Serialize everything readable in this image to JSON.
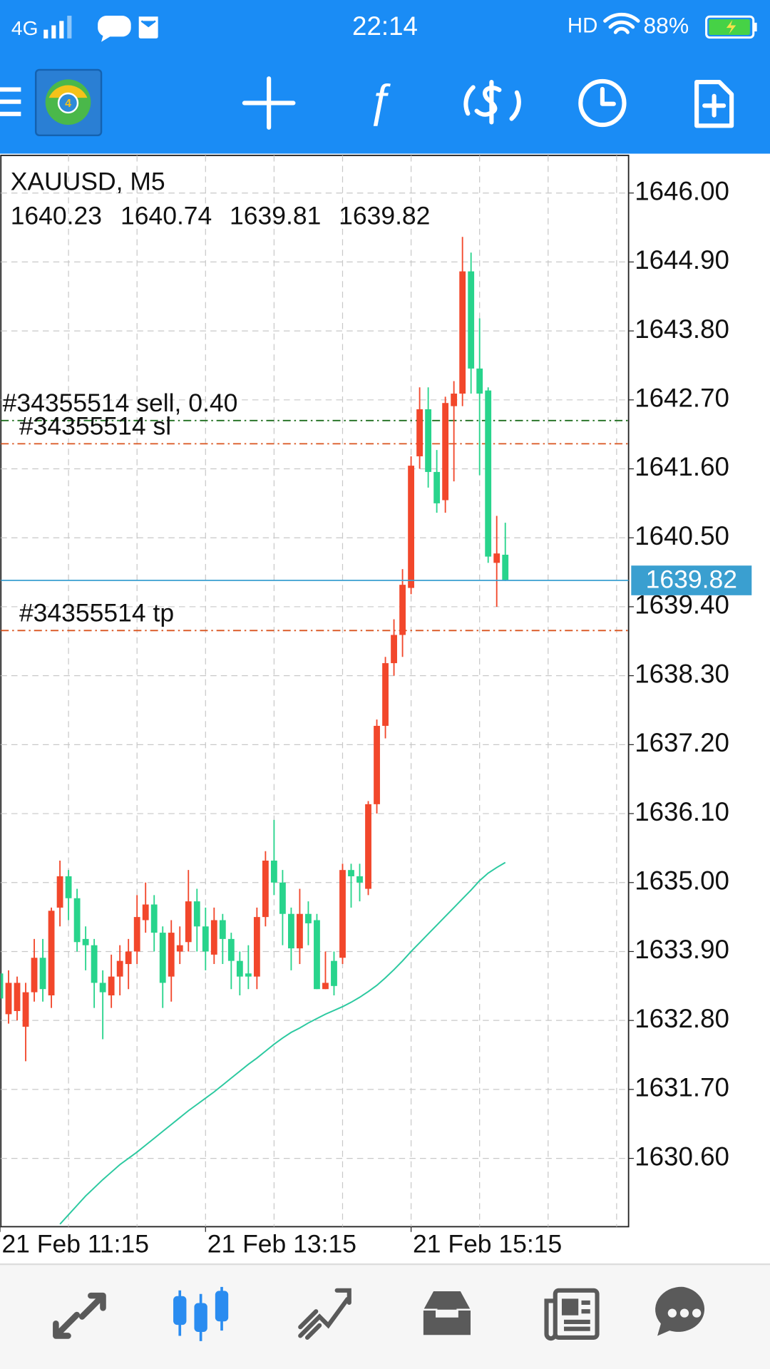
{
  "status_bar": {
    "network": "4G",
    "time": "22:14",
    "hd": "HD",
    "battery": "88%"
  },
  "chart_data": {
    "type": "candlestick",
    "title": "XAUUSD, M5",
    "categories": [
      "21 Feb 11:15",
      null,
      null,
      null,
      null,
      null,
      null,
      null,
      null,
      null,
      null,
      null,
      null,
      null,
      null,
      null,
      null,
      null,
      null,
      null,
      null,
      null,
      null,
      null,
      "21 Feb 13:15",
      null,
      null,
      null,
      null,
      null,
      null,
      null,
      null,
      null,
      null,
      null,
      null,
      null,
      null,
      null,
      null,
      null,
      null,
      null,
      null,
      null,
      null,
      null,
      "21 Feb 15:15",
      null,
      null,
      null,
      null,
      null,
      null,
      null,
      null,
      null,
      null,
      null
    ],
    "open": [
      1633.55,
      1632.9,
      1632.95,
      1632.7,
      1633.25,
      1633.8,
      1633.2,
      1634.6,
      1635.1,
      1634.75,
      1634.1,
      1634.0,
      1633.4,
      1633.2,
      1633.5,
      1633.7,
      1633.9,
      1634.4,
      1634.65,
      1634.2,
      1633.5,
      1633.9,
      1634.05,
      1634.7,
      1634.3,
      1633.85,
      1634.4,
      1634.1,
      1633.75,
      1633.55,
      1633.5,
      1634.45,
      1635.35,
      1635.0,
      1634.5,
      1633.95,
      1634.5,
      1634.4,
      1633.3,
      1633.75,
      1633.8,
      1635.2,
      1635.1,
      1634.9,
      1636.25,
      1637.5,
      1638.5,
      1638.95,
      1639.7,
      1641.8,
      1642.55,
      1641.55,
      1641.1,
      1642.6,
      1642.8,
      1644.75,
      1643.2,
      1642.85,
      1640.1,
      1640.23
    ],
    "high": [
      1633.7,
      1633.6,
      1633.5,
      1633.4,
      1634.1,
      1634.1,
      1634.6,
      1635.35,
      1635.2,
      1634.9,
      1634.3,
      1634.1,
      1633.6,
      1633.85,
      1634.0,
      1634.1,
      1634.8,
      1635.0,
      1634.8,
      1634.3,
      1634.4,
      1634.3,
      1635.2,
      1634.9,
      1634.6,
      1634.6,
      1634.5,
      1634.2,
      1633.9,
      1634.0,
      1634.6,
      1635.5,
      1636.0,
      1635.2,
      1634.6,
      1634.9,
      1634.7,
      1634.5,
      1633.9,
      1633.9,
      1635.3,
      1635.3,
      1635.3,
      1636.3,
      1637.6,
      1638.6,
      1639.2,
      1640.0,
      1641.8,
      1642.9,
      1642.9,
      1641.9,
      1642.75,
      1643.0,
      1645.3,
      1645.05,
      1644.0,
      1642.9,
      1640.85,
      1640.74
    ],
    "low": [
      1632.9,
      1632.75,
      1632.8,
      1632.15,
      1633.1,
      1633.1,
      1633.0,
      1634.3,
      1634.4,
      1633.9,
      1633.6,
      1633.0,
      1632.5,
      1633.0,
      1633.2,
      1633.3,
      1633.7,
      1634.2,
      1633.9,
      1633.0,
      1633.1,
      1633.7,
      1633.9,
      1633.9,
      1633.6,
      1633.7,
      1633.7,
      1633.3,
      1633.2,
      1633.3,
      1633.3,
      1634.3,
      1634.8,
      1634.0,
      1633.6,
      1633.7,
      1634.0,
      1633.3,
      1633.3,
      1633.2,
      1633.7,
      1634.6,
      1634.7,
      1634.8,
      1636.1,
      1637.3,
      1638.3,
      1638.6,
      1639.6,
      1641.6,
      1641.3,
      1640.9,
      1640.9,
      1641.4,
      1642.6,
      1642.8,
      1641.5,
      1640.1,
      1639.4,
      1639.81
    ],
    "close": [
      1633.15,
      1633.4,
      1633.4,
      1633.25,
      1633.8,
      1633.3,
      1634.55,
      1635.1,
      1634.75,
      1634.05,
      1634.0,
      1633.4,
      1633.25,
      1633.5,
      1633.75,
      1633.9,
      1634.45,
      1634.65,
      1634.2,
      1633.4,
      1634.2,
      1634.0,
      1634.7,
      1634.3,
      1633.9,
      1634.4,
      1634.1,
      1633.75,
      1633.5,
      1633.5,
      1634.45,
      1635.35,
      1635.0,
      1634.5,
      1633.95,
      1634.5,
      1634.35,
      1633.3,
      1633.4,
      1633.35,
      1635.2,
      1635.1,
      1635.0,
      1636.25,
      1637.5,
      1638.5,
      1638.95,
      1639.75,
      1641.65,
      1642.55,
      1641.55,
      1641.05,
      1642.65,
      1642.8,
      1644.75,
      1643.2,
      1642.8,
      1640.2,
      1640.25,
      1639.82
    ],
    "up_color": "#f2472b",
    "down_color": "#28d48c",
    "ma": {
      "color": "#2cc9a0",
      "values": [
        null,
        null,
        null,
        null,
        null,
        null,
        null,
        1629.55,
        1629.7,
        1629.85,
        1630.0,
        1630.13,
        1630.26,
        1630.38,
        1630.5,
        1630.6,
        1630.7,
        1630.81,
        1630.92,
        1631.03,
        1631.14,
        1631.25,
        1631.36,
        1631.46,
        1631.56,
        1631.66,
        1631.77,
        1631.88,
        1631.99,
        1632.1,
        1632.2,
        1632.31,
        1632.42,
        1632.52,
        1632.61,
        1632.68,
        1632.76,
        1632.83,
        1632.9,
        1632.96,
        1633.02,
        1633.09,
        1633.17,
        1633.26,
        1633.36,
        1633.48,
        1633.61,
        1633.75,
        1633.9,
        1634.04,
        1634.18,
        1634.32,
        1634.46,
        1634.6,
        1634.74,
        1634.88,
        1635.03,
        1635.15,
        1635.24,
        1635.32
      ]
    },
    "order_lines": [
      {
        "label": "#34355514 sell, 0.40",
        "value": 1642.37,
        "color": "#1f6e1f"
      },
      {
        "label": "#34355514 sl",
        "value": 1642.0,
        "color": "#d9531e"
      },
      {
        "label": "#34355514 tp",
        "value": 1639.02,
        "color": "#d9531e"
      }
    ],
    "bid_color": "#3a9fd0",
    "ylim": [
      1629.51,
      1646.6
    ],
    "yticks": [
      {
        "value": 1646,
        "label": "1646.00"
      },
      {
        "value": 1644.9,
        "label": "1644.90"
      },
      {
        "value": 1643.8,
        "label": "1643.80"
      },
      {
        "value": 1642.7,
        "label": "1642.70"
      },
      {
        "value": 1641.6,
        "label": "1641.60"
      },
      {
        "value": 1640.5,
        "label": "1640.50"
      },
      {
        "value": 1639.4,
        "label": "1639.40"
      },
      {
        "value": 1638.3,
        "label": "1638.30"
      },
      {
        "value": 1637.2,
        "label": "1637.20"
      },
      {
        "value": 1636.1,
        "label": "1636.10"
      },
      {
        "value": 1635,
        "label": "1635.00"
      },
      {
        "value": 1633.9,
        "label": "1633.90"
      },
      {
        "value": 1632.8,
        "label": "1632.80"
      },
      {
        "value": 1631.7,
        "label": "1631.70"
      },
      {
        "value": 1630.6,
        "label": "1630.60"
      }
    ],
    "grid": true
  }
}
